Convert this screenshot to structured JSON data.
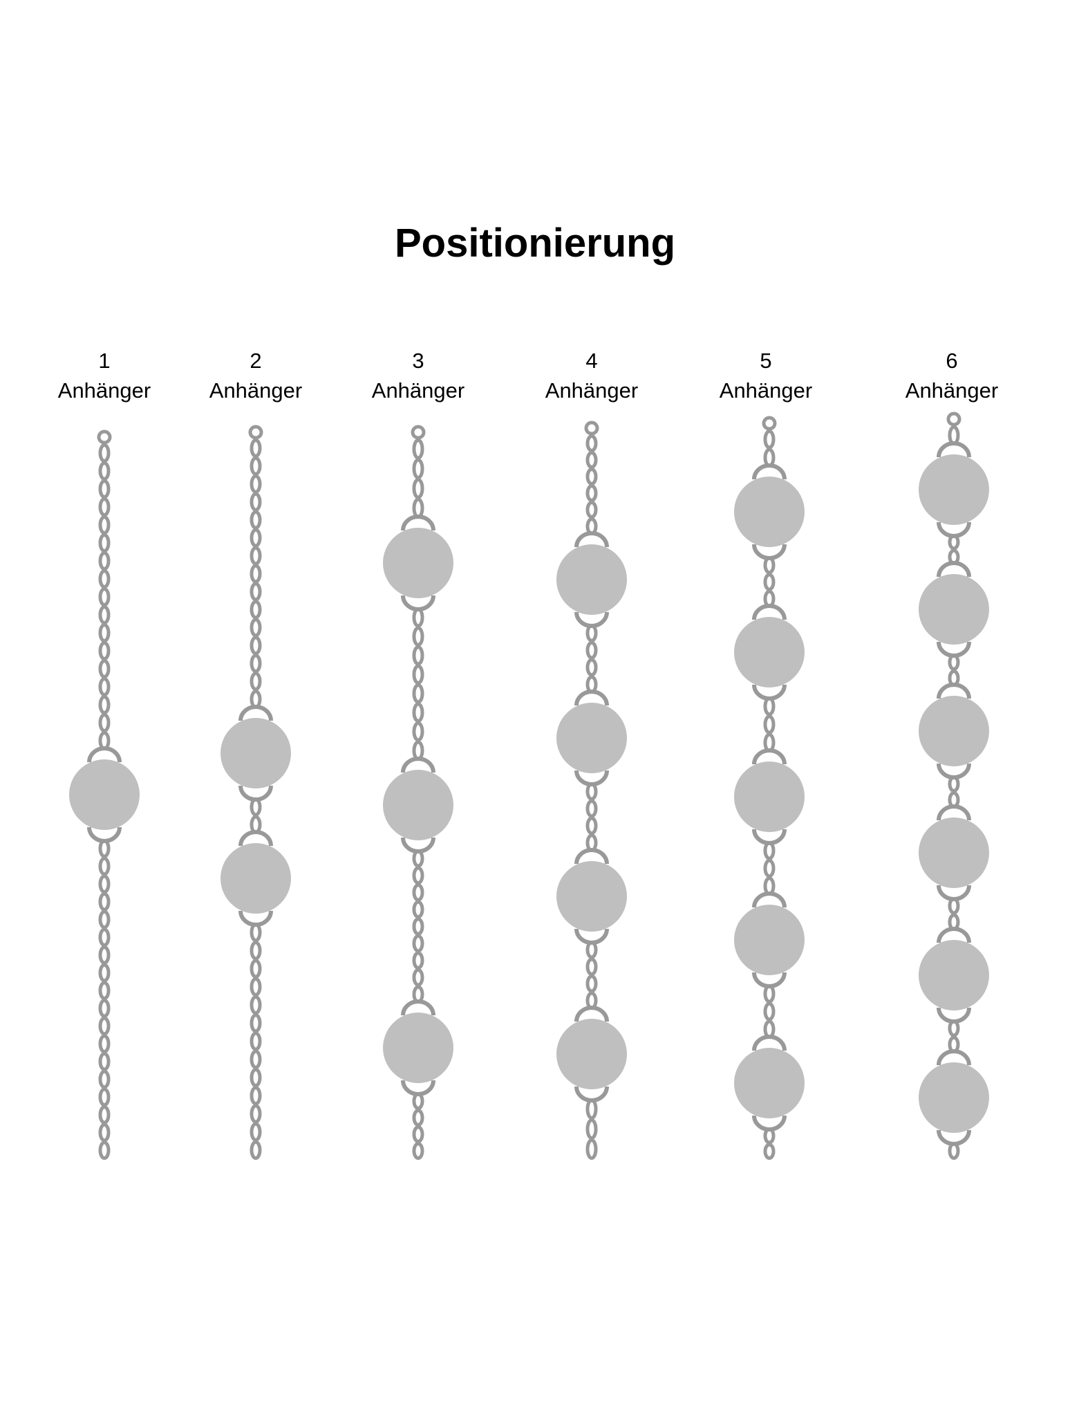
{
  "title": "Positionierung",
  "colors": {
    "chain": "#999999",
    "pendant": "#bfbfbf",
    "background": "#ffffff"
  },
  "columns": [
    {
      "count": "1",
      "label": "Anhänger",
      "pendants": 1
    },
    {
      "count": "2",
      "label": "Anhänger",
      "pendants": 2
    },
    {
      "count": "3",
      "label": "Anhänger",
      "pendants": 3
    },
    {
      "count": "4",
      "label": "Anhänger",
      "pendants": 4
    },
    {
      "count": "5",
      "label": "Anhänger",
      "pendants": 5
    },
    {
      "count": "6",
      "label": "Anhänger",
      "pendants": 6
    }
  ]
}
